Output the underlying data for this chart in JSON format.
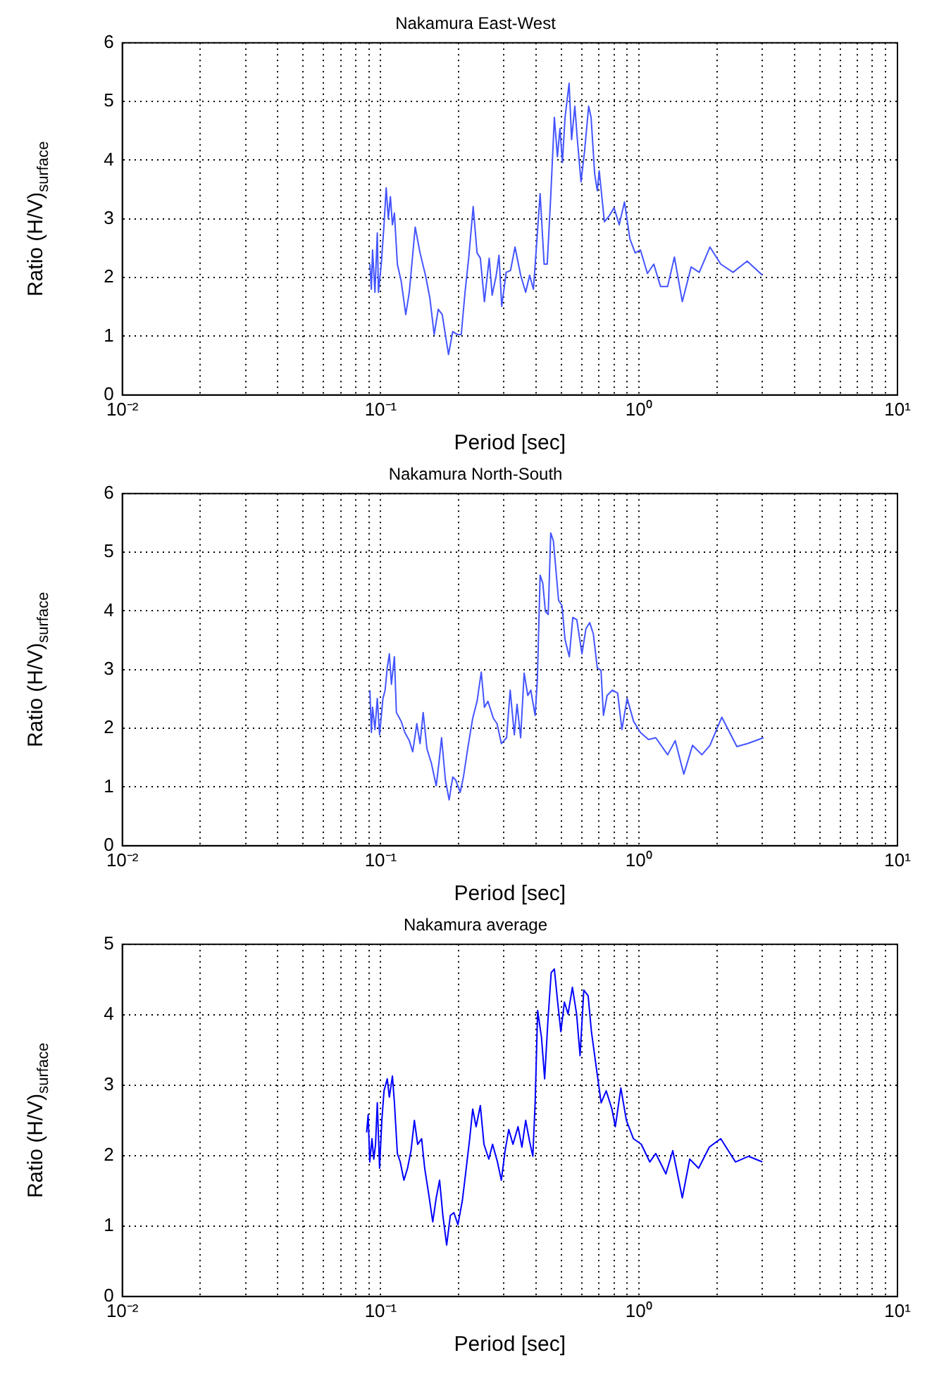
{
  "chart_data": [
    {
      "type": "line",
      "title": "Nakamura East-West",
      "xlabel": "Period [sec]",
      "ylabel": "Ratio (H/V)$_{surface}$",
      "log": "x",
      "grid": true,
      "marker": "none",
      "color": "#4455ff",
      "x": [
        0.0908,
        0.092,
        0.093,
        0.095,
        0.097,
        0.098,
        0.1005,
        0.103,
        0.105,
        0.107,
        0.109,
        0.111,
        0.113,
        0.116,
        0.12,
        0.125,
        0.129,
        0.136,
        0.142,
        0.149,
        0.155,
        0.161,
        0.167,
        0.173,
        0.183,
        0.19,
        0.198,
        0.205,
        0.212,
        0.219,
        0.228,
        0.236,
        0.243,
        0.252,
        0.263,
        0.27,
        0.28,
        0.287,
        0.294,
        0.306,
        0.318,
        0.331,
        0.348,
        0.364,
        0.377,
        0.39,
        0.399,
        0.414,
        0.429,
        0.441,
        0.455,
        0.47,
        0.483,
        0.494,
        0.505,
        0.517,
        0.536,
        0.548,
        0.564,
        0.577,
        0.596,
        0.615,
        0.638,
        0.652,
        0.673,
        0.689,
        0.701,
        0.734,
        0.766,
        0.8,
        0.838,
        0.878,
        0.921,
        0.966,
        1.012,
        1.077,
        1.14,
        1.21,
        1.29,
        1.37,
        1.47,
        1.59,
        1.71,
        1.88,
        2.07,
        2.31,
        2.62,
        3.0
      ],
      "values": [
        2.23,
        1.8,
        2.47,
        1.75,
        2.76,
        1.75,
        2.23,
        2.9,
        3.53,
        3.0,
        3.38,
        2.9,
        3.1,
        2.23,
        1.94,
        1.37,
        1.75,
        2.86,
        2.42,
        2.04,
        1.65,
        1.03,
        1.46,
        1.37,
        0.69,
        1.08,
        1.03,
        1.03,
        1.75,
        2.33,
        3.21,
        2.42,
        2.33,
        1.59,
        2.33,
        1.7,
        2.04,
        2.38,
        1.51,
        2.09,
        2.12,
        2.52,
        2.04,
        1.75,
        2.04,
        1.8,
        2.42,
        3.43,
        2.23,
        2.23,
        3.38,
        4.73,
        4.06,
        4.54,
        3.96,
        4.73,
        5.31,
        4.35,
        4.92,
        4.35,
        3.63,
        4.15,
        4.92,
        4.73,
        3.77,
        3.48,
        3.82,
        2.95,
        3.05,
        3.19,
        2.9,
        3.29,
        2.66,
        2.42,
        2.47,
        2.07,
        2.23,
        1.85,
        1.85,
        2.35,
        1.59,
        2.18,
        2.09,
        2.52,
        2.23,
        2.09,
        2.28,
        2.04
      ],
      "xlim": [
        0.01,
        10
      ],
      "ylim": [
        0,
        6
      ],
      "yticks": [
        0,
        1,
        2,
        3,
        4,
        5,
        6
      ],
      "xticks": [
        {
          "value": 0.01,
          "label": "10⁻²"
        },
        {
          "value": 0.02,
          "label": null
        },
        {
          "value": 0.03,
          "label": null
        },
        {
          "value": 0.04,
          "label": null
        },
        {
          "value": 0.05,
          "label": null
        },
        {
          "value": 0.06,
          "label": null
        },
        {
          "value": 0.07,
          "label": null
        },
        {
          "value": 0.08,
          "label": null
        },
        {
          "value": 0.09,
          "label": null
        },
        {
          "value": 0.1,
          "label": "10⁻¹"
        },
        {
          "value": 0.2,
          "label": null
        },
        {
          "value": 0.3,
          "label": null
        },
        {
          "value": 0.4,
          "label": null
        },
        {
          "value": 0.5,
          "label": null
        },
        {
          "value": 0.6,
          "label": null
        },
        {
          "value": 0.7,
          "label": null
        },
        {
          "value": 0.8,
          "label": null
        },
        {
          "value": 0.9,
          "label": null
        },
        {
          "value": 1,
          "label": "10⁰"
        },
        {
          "value": 2,
          "label": null
        },
        {
          "value": 3,
          "label": null
        },
        {
          "value": 4,
          "label": null
        },
        {
          "value": 5,
          "label": null
        },
        {
          "value": 6,
          "label": null
        },
        {
          "value": 7,
          "label": null
        },
        {
          "value": 8,
          "label": null
        },
        {
          "value": 9,
          "label": null
        },
        {
          "value": 10,
          "label": "10¹"
        }
      ]
    },
    {
      "type": "line",
      "title": "Nakamura North-South",
      "xlabel": "Period [sec]",
      "ylabel": "Ratio (H/V)$_{surface}$",
      "log": "x",
      "grid": true,
      "marker": "none",
      "color": "#4455ff",
      "x": [
        0.0908,
        0.092,
        0.093,
        0.095,
        0.097,
        0.099,
        0.102,
        0.104,
        0.106,
        0.108,
        0.11,
        0.113,
        0.115,
        0.12,
        0.124,
        0.129,
        0.133,
        0.138,
        0.142,
        0.146,
        0.151,
        0.157,
        0.164,
        0.168,
        0.172,
        0.178,
        0.184,
        0.19,
        0.195,
        0.203,
        0.209,
        0.217,
        0.227,
        0.236,
        0.245,
        0.252,
        0.26,
        0.273,
        0.282,
        0.293,
        0.307,
        0.317,
        0.329,
        0.337,
        0.348,
        0.359,
        0.371,
        0.381,
        0.396,
        0.404,
        0.414,
        0.424,
        0.434,
        0.445,
        0.455,
        0.466,
        0.488,
        0.503,
        0.517,
        0.537,
        0.554,
        0.574,
        0.601,
        0.623,
        0.644,
        0.665,
        0.689,
        0.712,
        0.728,
        0.752,
        0.788,
        0.826,
        0.858,
        0.899,
        0.952,
        1.012,
        1.087,
        1.16,
        1.29,
        1.38,
        1.49,
        1.61,
        1.75,
        1.88,
        2.09,
        2.39,
        2.63,
        3.03
      ],
      "values": [
        2.65,
        1.93,
        2.36,
        1.98,
        2.51,
        1.89,
        2.51,
        2.65,
        3.03,
        3.27,
        2.75,
        3.22,
        2.27,
        2.12,
        1.93,
        1.79,
        1.6,
        2.08,
        1.74,
        2.27,
        1.65,
        1.41,
        1.02,
        1.41,
        1.84,
        1.12,
        0.78,
        1.17,
        1.12,
        0.91,
        1.17,
        1.65,
        2.17,
        2.46,
        2.96,
        2.36,
        2.46,
        2.17,
        2.08,
        1.74,
        1.84,
        2.65,
        1.89,
        2.41,
        1.84,
        2.94,
        2.56,
        2.65,
        2.22,
        2.84,
        4.61,
        4.47,
        3.99,
        3.94,
        5.33,
        5.19,
        4.18,
        4.09,
        3.51,
        3.22,
        3.89,
        3.85,
        3.27,
        3.7,
        3.8,
        3.61,
        3.03,
        2.99,
        2.22,
        2.56,
        2.65,
        2.6,
        1.98,
        2.51,
        2.12,
        1.93,
        1.81,
        1.84,
        1.55,
        1.79,
        1.22,
        1.71,
        1.55,
        1.71,
        2.19,
        1.69,
        1.74,
        1.84
      ],
      "xlim": [
        0.01,
        10
      ],
      "ylim": [
        0,
        6
      ],
      "yticks": [
        0,
        1,
        2,
        3,
        4,
        5,
        6
      ],
      "xticks": [
        {
          "value": 0.01,
          "label": "10⁻²"
        },
        {
          "value": 0.02,
          "label": null
        },
        {
          "value": 0.03,
          "label": null
        },
        {
          "value": 0.04,
          "label": null
        },
        {
          "value": 0.05,
          "label": null
        },
        {
          "value": 0.06,
          "label": null
        },
        {
          "value": 0.07,
          "label": null
        },
        {
          "value": 0.08,
          "label": null
        },
        {
          "value": 0.09,
          "label": null
        },
        {
          "value": 0.1,
          "label": "10⁻¹"
        },
        {
          "value": 0.2,
          "label": null
        },
        {
          "value": 0.3,
          "label": null
        },
        {
          "value": 0.4,
          "label": null
        },
        {
          "value": 0.5,
          "label": null
        },
        {
          "value": 0.6,
          "label": null
        },
        {
          "value": 0.7,
          "label": null
        },
        {
          "value": 0.8,
          "label": null
        },
        {
          "value": 0.9,
          "label": null
        },
        {
          "value": 1,
          "label": "10⁰"
        },
        {
          "value": 2,
          "label": null
        },
        {
          "value": 3,
          "label": null
        },
        {
          "value": 4,
          "label": null
        },
        {
          "value": 5,
          "label": null
        },
        {
          "value": 6,
          "label": null
        },
        {
          "value": 7,
          "label": null
        },
        {
          "value": 8,
          "label": null
        },
        {
          "value": 9,
          "label": null
        },
        {
          "value": 10,
          "label": "10¹"
        }
      ]
    },
    {
      "type": "line",
      "title": "Nakamura average",
      "xlabel": "Period [sec]",
      "ylabel": "Ratio (H/V)$_{surface}$",
      "log": "x",
      "grid": true,
      "marker": "none",
      "color": "#0000ff",
      "x": [
        0.0882,
        0.0894,
        0.0907,
        0.0925,
        0.094,
        0.0955,
        0.097,
        0.099,
        0.101,
        0.103,
        0.106,
        0.108,
        0.111,
        0.113,
        0.116,
        0.119,
        0.123,
        0.127,
        0.131,
        0.135,
        0.139,
        0.144,
        0.148,
        0.153,
        0.159,
        0.164,
        0.169,
        0.174,
        0.18,
        0.186,
        0.192,
        0.199,
        0.207,
        0.213,
        0.221,
        0.227,
        0.234,
        0.243,
        0.251,
        0.262,
        0.271,
        0.283,
        0.293,
        0.303,
        0.313,
        0.325,
        0.34,
        0.352,
        0.364,
        0.377,
        0.388,
        0.396,
        0.405,
        0.419,
        0.431,
        0.444,
        0.457,
        0.47,
        0.484,
        0.498,
        0.514,
        0.531,
        0.552,
        0.573,
        0.591,
        0.611,
        0.635,
        0.654,
        0.683,
        0.713,
        0.746,
        0.785,
        0.809,
        0.85,
        0.893,
        0.951,
        1.02,
        1.1,
        1.16,
        1.27,
        1.35,
        1.47,
        1.57,
        1.7,
        1.87,
        2.07,
        2.36,
        2.65,
        3.0
      ],
      "values": [
        2.33,
        2.58,
        1.91,
        2.24,
        1.95,
        2.16,
        2.75,
        1.82,
        2.5,
        2.92,
        3.09,
        2.83,
        3.13,
        2.75,
        2.03,
        1.91,
        1.65,
        1.82,
        2.07,
        2.5,
        2.16,
        2.24,
        1.82,
        1.48,
        1.06,
        1.4,
        1.65,
        1.15,
        0.73,
        1.15,
        1.19,
        1.02,
        1.36,
        1.74,
        2.24,
        2.66,
        2.41,
        2.71,
        2.16,
        1.95,
        2.16,
        1.91,
        1.65,
        2.07,
        2.37,
        2.16,
        2.41,
        2.12,
        2.5,
        2.2,
        1.99,
        2.75,
        4.06,
        3.68,
        3.09,
        3.93,
        4.6,
        4.65,
        4.18,
        3.76,
        4.18,
        4.01,
        4.39,
        4.01,
        3.42,
        4.35,
        4.27,
        3.76,
        3.25,
        2.75,
        2.92,
        2.66,
        2.41,
        2.96,
        2.5,
        2.24,
        2.16,
        1.91,
        2.03,
        1.74,
        2.07,
        1.4,
        1.95,
        1.82,
        2.12,
        2.24,
        1.91,
        1.99,
        1.91
      ],
      "xlim": [
        0.01,
        10
      ],
      "ylim": [
        0,
        5
      ],
      "yticks": [
        0,
        1,
        2,
        3,
        4,
        5
      ],
      "xticks": [
        {
          "value": 0.01,
          "label": "10⁻²"
        },
        {
          "value": 0.02,
          "label": null
        },
        {
          "value": 0.03,
          "label": null
        },
        {
          "value": 0.04,
          "label": null
        },
        {
          "value": 0.05,
          "label": null
        },
        {
          "value": 0.06,
          "label": null
        },
        {
          "value": 0.07,
          "label": null
        },
        {
          "value": 0.08,
          "label": null
        },
        {
          "value": 0.09,
          "label": null
        },
        {
          "value": 0.1,
          "label": "10⁻¹"
        },
        {
          "value": 0.2,
          "label": null
        },
        {
          "value": 0.3,
          "label": null
        },
        {
          "value": 0.4,
          "label": null
        },
        {
          "value": 0.5,
          "label": null
        },
        {
          "value": 0.6,
          "label": null
        },
        {
          "value": 0.7,
          "label": null
        },
        {
          "value": 0.8,
          "label": null
        },
        {
          "value": 0.9,
          "label": null
        },
        {
          "value": 1,
          "label": "10⁰"
        },
        {
          "value": 2,
          "label": null
        },
        {
          "value": 3,
          "label": null
        },
        {
          "value": 4,
          "label": null
        },
        {
          "value": 5,
          "label": null
        },
        {
          "value": 6,
          "label": null
        },
        {
          "value": 7,
          "label": null
        },
        {
          "value": 8,
          "label": null
        },
        {
          "value": 9,
          "label": null
        },
        {
          "value": 10,
          "label": "10¹"
        }
      ]
    }
  ]
}
